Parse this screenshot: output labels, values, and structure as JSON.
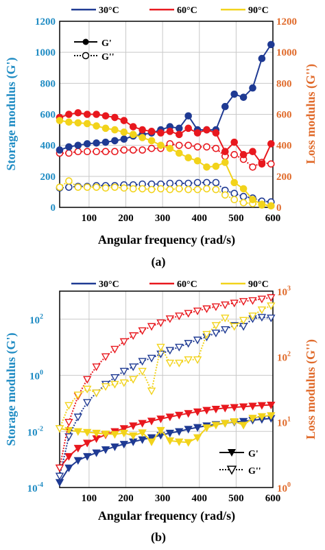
{
  "chart_data": [
    {
      "panel": "(a)",
      "type": "line",
      "xlabel": "Angular frequency (rad/s)",
      "ylabel_left": "Storage modulus (G')",
      "ylabel_right": "Loss modulus (G'')",
      "xlim": [
        20,
        600
      ],
      "ylim_left": [
        0,
        1200
      ],
      "ylim_right": [
        0,
        1200
      ],
      "xticks": [
        "100",
        "200",
        "300",
        "400",
        "500",
        "600"
      ],
      "yticks_left": [
        "0",
        "200",
        "400",
        "600",
        "800",
        "1000",
        "1200"
      ],
      "yticks_right": [
        "0",
        "200",
        "400",
        "600",
        "800",
        "1000",
        "1200"
      ],
      "legend_top": [
        "30°C",
        "60°C",
        "90°C"
      ],
      "legend_inner": [
        "G'",
        "G''"
      ],
      "grid": true,
      "series": [
        {
          "name": "30°C",
          "modulus": "G'",
          "axis": "left",
          "x": [
            20,
            45,
            70,
            95,
            120,
            145,
            170,
            195,
            220,
            245,
            270,
            295,
            320,
            345,
            370,
            395,
            420,
            445,
            470,
            495,
            520,
            545,
            570,
            595
          ],
          "y": [
            370,
            390,
            400,
            410,
            415,
            420,
            430,
            440,
            460,
            470,
            480,
            500,
            520,
            510,
            590,
            500,
            500,
            500,
            650,
            730,
            710,
            770,
            960,
            1050
          ]
        },
        {
          "name": "30°C",
          "modulus": "G''",
          "axis": "left",
          "x": [
            20,
            45,
            70,
            95,
            120,
            145,
            170,
            195,
            220,
            245,
            270,
            295,
            320,
            345,
            370,
            395,
            420,
            445,
            470,
            495,
            520,
            545,
            570,
            595
          ],
          "y": [
            125,
            130,
            135,
            135,
            140,
            140,
            140,
            145,
            145,
            150,
            150,
            150,
            155,
            155,
            155,
            160,
            160,
            160,
            110,
            90,
            70,
            60,
            40,
            35
          ]
        },
        {
          "name": "60°C",
          "modulus": "G'",
          "axis": "right",
          "x": [
            20,
            45,
            70,
            95,
            120,
            145,
            170,
            195,
            220,
            245,
            270,
            295,
            320,
            345,
            370,
            395,
            420,
            445,
            470,
            495,
            520,
            545,
            570,
            595
          ],
          "y": [
            580,
            600,
            610,
            600,
            600,
            590,
            580,
            560,
            520,
            500,
            490,
            480,
            490,
            470,
            510,
            480,
            500,
            480,
            360,
            420,
            340,
            360,
            280,
            410
          ]
        },
        {
          "name": "60°C",
          "modulus": "G''",
          "axis": "right",
          "x": [
            20,
            45,
            70,
            95,
            120,
            145,
            170,
            195,
            220,
            245,
            270,
            295,
            320,
            345,
            370,
            395,
            420,
            445,
            470,
            495,
            520,
            545,
            570,
            595
          ],
          "y": [
            350,
            350,
            360,
            360,
            360,
            360,
            360,
            370,
            370,
            370,
            380,
            380,
            410,
            400,
            400,
            390,
            390,
            380,
            330,
            340,
            310,
            260,
            290,
            280
          ]
        },
        {
          "name": "90°C",
          "modulus": "G'",
          "axis": "right",
          "x": [
            20,
            45,
            70,
            95,
            120,
            145,
            170,
            195,
            220,
            245,
            270,
            295,
            320,
            345,
            370,
            395,
            420,
            445,
            470,
            495,
            520,
            545,
            570,
            595
          ],
          "y": [
            560,
            550,
            545,
            540,
            525,
            510,
            500,
            485,
            470,
            450,
            430,
            400,
            380,
            350,
            320,
            300,
            260,
            265,
            290,
            160,
            120,
            50,
            20,
            10
          ]
        },
        {
          "name": "90°C",
          "modulus": "G''",
          "axis": "right",
          "x": [
            20,
            45,
            70,
            95,
            120,
            145,
            170,
            195,
            220,
            245,
            270,
            295,
            320,
            345,
            370,
            395,
            420,
            445,
            470,
            495,
            520,
            545,
            570,
            595
          ],
          "y": [
            130,
            170,
            130,
            130,
            130,
            125,
            130,
            125,
            120,
            120,
            115,
            120,
            115,
            120,
            115,
            115,
            120,
            115,
            80,
            50,
            30,
            25,
            15,
            10
          ]
        }
      ]
    },
    {
      "panel": "(b)",
      "type": "line",
      "xlabel": "Angular frequency (rad/s)",
      "ylabel_left": "Storage modulus (G')",
      "ylabel_right": "Loss modulus (G'')",
      "xlim": [
        20,
        600
      ],
      "ylim_left": [
        0.0001,
        1000
      ],
      "ylim_right": [
        1,
        1000
      ],
      "yscale": "log",
      "xticks": [
        "100",
        "200",
        "300",
        "400",
        "500",
        "600"
      ],
      "yticks_left": [
        {
          "base": "10",
          "exp": "-4"
        },
        {
          "base": "10",
          "exp": "-2"
        },
        {
          "base": "10",
          "exp": "0"
        },
        {
          "base": "10",
          "exp": "2"
        }
      ],
      "yticks_right": [
        {
          "base": "10",
          "exp": "0"
        },
        {
          "base": "10",
          "exp": "1"
        },
        {
          "base": "10",
          "exp": "2"
        },
        {
          "base": "10",
          "exp": "3"
        }
      ],
      "legend_top": [
        "30°C",
        "60°C",
        "90°C"
      ],
      "legend_inner": [
        "G'",
        "G''"
      ],
      "grid": true,
      "series": [
        {
          "name": "30°C",
          "modulus": "G'",
          "axis": "right",
          "x": [
            20,
            45,
            70,
            95,
            120,
            145,
            170,
            195,
            220,
            245,
            270,
            295,
            320,
            345,
            370,
            395,
            420,
            445,
            470,
            495,
            520,
            545,
            570,
            595
          ],
          "y": [
            1.2,
            2.0,
            2.6,
            3.0,
            3.4,
            3.8,
            4.2,
            4.6,
            5.0,
            5.4,
            5.8,
            6.3,
            6.8,
            7.2,
            7.8,
            8.3,
            8.8,
            9.2,
            9.6,
            10.0,
            10.3,
            10.7,
            11.0,
            11.4
          ]
        },
        {
          "name": "30°C",
          "modulus": "G''",
          "axis": "right",
          "x": [
            20,
            45,
            70,
            95,
            120,
            145,
            170,
            195,
            220,
            245,
            270,
            295,
            320,
            345,
            370,
            395,
            420,
            445,
            470,
            495,
            520,
            545,
            570,
            595
          ],
          "y": [
            1.5,
            6,
            12,
            20,
            28,
            38,
            48,
            60,
            70,
            85,
            95,
            110,
            125,
            140,
            160,
            180,
            200,
            230,
            260,
            300,
            290,
            380,
            400,
            390
          ]
        },
        {
          "name": "60°C",
          "modulus": "G'",
          "axis": "right",
          "x": [
            20,
            45,
            70,
            95,
            120,
            145,
            170,
            195,
            220,
            245,
            270,
            295,
            320,
            345,
            370,
            395,
            420,
            445,
            470,
            495,
            520,
            545,
            570,
            595
          ],
          "y": [
            2.0,
            3.0,
            4.0,
            4.8,
            5.6,
            6.4,
            7.2,
            8.0,
            8.8,
            9.6,
            10.4,
            11.2,
            12.0,
            12.8,
            13.6,
            14.4,
            15.2,
            15.8,
            16.4,
            16.8,
            17.2,
            17.6,
            18.0,
            18.3
          ]
        },
        {
          "name": "60°C",
          "modulus": "G''",
          "axis": "right",
          "x": [
            20,
            45,
            70,
            95,
            120,
            145,
            170,
            195,
            220,
            245,
            270,
            295,
            320,
            345,
            370,
            395,
            420,
            445,
            470,
            495,
            520,
            545,
            570,
            595
          ],
          "y": [
            2.0,
            10,
            25,
            45,
            70,
            100,
            130,
            170,
            210,
            250,
            290,
            330,
            380,
            420,
            460,
            500,
            540,
            580,
            620,
            660,
            700,
            720,
            760,
            800
          ]
        },
        {
          "name": "90°C",
          "modulus": "G'",
          "axis": "right",
          "x": [
            20,
            45,
            70,
            95,
            120,
            145,
            170,
            195,
            220,
            245,
            270,
            295,
            320,
            345,
            370,
            395,
            420,
            445,
            470,
            495,
            520,
            545,
            570,
            595
          ],
          "y": [
            8.0,
            7.5,
            7.2,
            7.0,
            6.8,
            6.6,
            6.5,
            6.8,
            6.2,
            6.9,
            5.0,
            7.5,
            5.2,
            5.0,
            4.9,
            5.8,
            8.2,
            9.0,
            9.6,
            10.2,
            9.0,
            11.5,
            12.2,
            12.6
          ]
        },
        {
          "name": "90°C",
          "modulus": "G''",
          "axis": "right",
          "x": [
            20,
            45,
            70,
            95,
            120,
            145,
            170,
            195,
            220,
            245,
            270,
            295,
            320,
            345,
            370,
            395,
            420,
            445,
            470,
            495,
            520,
            545,
            570,
            595
          ],
          "y": [
            8,
            18,
            26,
            32,
            28,
            35,
            38,
            40,
            45,
            60,
            30,
            140,
            80,
            80,
            90,
            90,
            220,
            300,
            390,
            290,
            360,
            420,
            520,
            600
          ]
        }
      ]
    }
  ],
  "captions": [
    "(a)",
    "(b)"
  ],
  "colors": {
    "c30": "#1f3a93",
    "c60": "#e8181e",
    "c90": "#f2d31b",
    "left_axis": "#1e8bc3",
    "right_axis": "#e06a2a",
    "grid": "#c8c8c8"
  }
}
